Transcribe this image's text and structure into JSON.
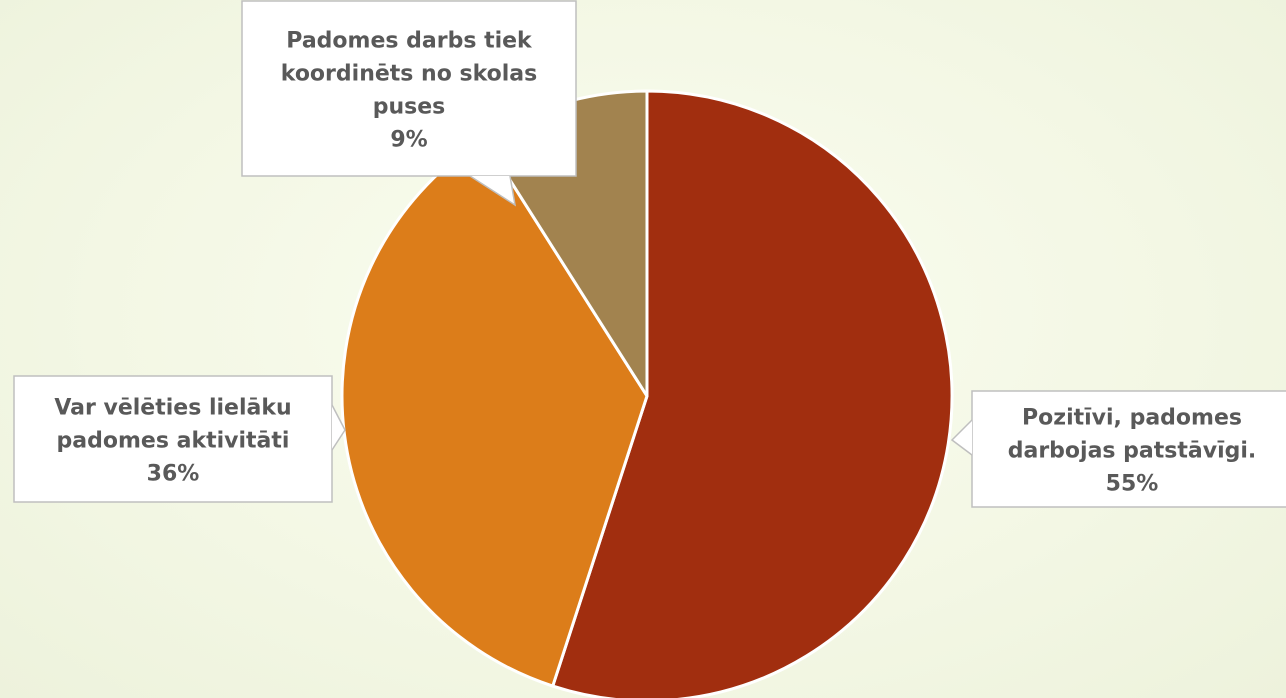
{
  "chart_data": {
    "type": "pie",
    "title": "",
    "slices": [
      {
        "name": "Pozitīvi, padomes darbojas patstāvīgi.",
        "lines": [
          "Pozitīvi, padomes",
          "darbojas patstāvīgi."
        ],
        "value": 55,
        "label": "55%",
        "color": "#a12e0f"
      },
      {
        "name": "Var vēlēties lielāku padomes aktivitāti",
        "lines": [
          "Var vēlēties lielāku",
          "padomes aktivitāti"
        ],
        "value": 36,
        "label": "36%",
        "color": "#dc7d1a"
      },
      {
        "name": "Padomes darbs tiek koordinēts no skolas puses",
        "lines": [
          "Padomes darbs tiek",
          "koordinēts no skolas",
          "puses"
        ],
        "value": 9,
        "label": "9%",
        "color": "#a2834f"
      }
    ]
  }
}
